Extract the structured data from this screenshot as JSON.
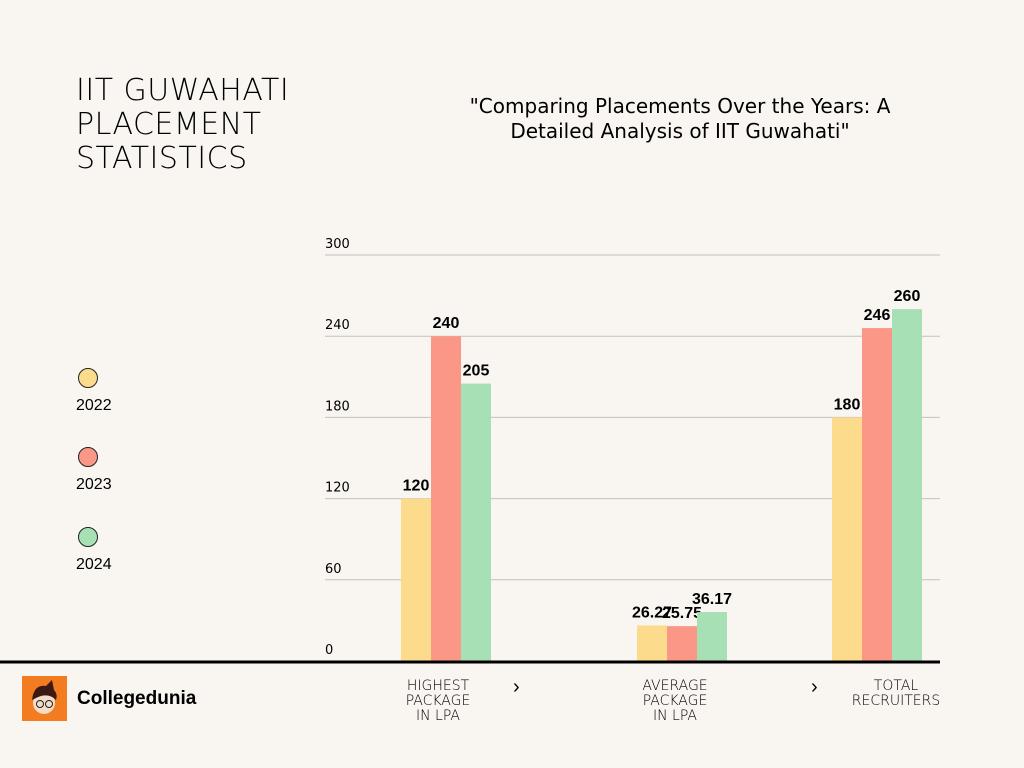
{
  "header": {
    "title_lines": [
      "IIT GUWAHATI",
      "PLACEMENT",
      "STATISTICS"
    ],
    "subtitle_lines": [
      "\"Comparing Placements Over the Years: A",
      "Detailed Analysis of IIT Guwahati\""
    ]
  },
  "brand": {
    "name": "Collegedunia"
  },
  "chart_data": {
    "type": "bar",
    "title": "\"Comparing Placements Over the Years: A Detailed Analysis of IIT Guwahati\"",
    "categories": [
      "HIGHEST PACKAGE IN LPA",
      "AVERAGE PACKAGE IN LPA",
      "TOTAL RECRUITERS"
    ],
    "category_lines": [
      [
        "HIGHEST",
        "PACKAGE",
        "IN LPA"
      ],
      [
        "AVERAGE",
        "PACKAGE",
        "IN LPA"
      ],
      [
        "TOTAL",
        "RECRUITERS"
      ]
    ],
    "series": [
      {
        "name": "2022",
        "color": "#fcdc8c",
        "values": [
          120,
          26.27,
          180
        ],
        "labels": [
          "120",
          "26.27",
          "180"
        ]
      },
      {
        "name": "2023",
        "color": "#fa9786",
        "values": [
          240,
          25.75,
          246
        ],
        "labels": [
          "240",
          "25.75",
          "246"
        ]
      },
      {
        "name": "2024",
        "color": "#a8e0b5",
        "values": [
          205,
          36.17,
          260
        ],
        "labels": [
          "205",
          "36.17",
          "260"
        ]
      }
    ],
    "yticks": [
      "0",
      "60",
      "120",
      "180",
      "240",
      "300"
    ],
    "ylim": [
      0,
      300
    ],
    "grid": true,
    "legend_placement": "left"
  }
}
